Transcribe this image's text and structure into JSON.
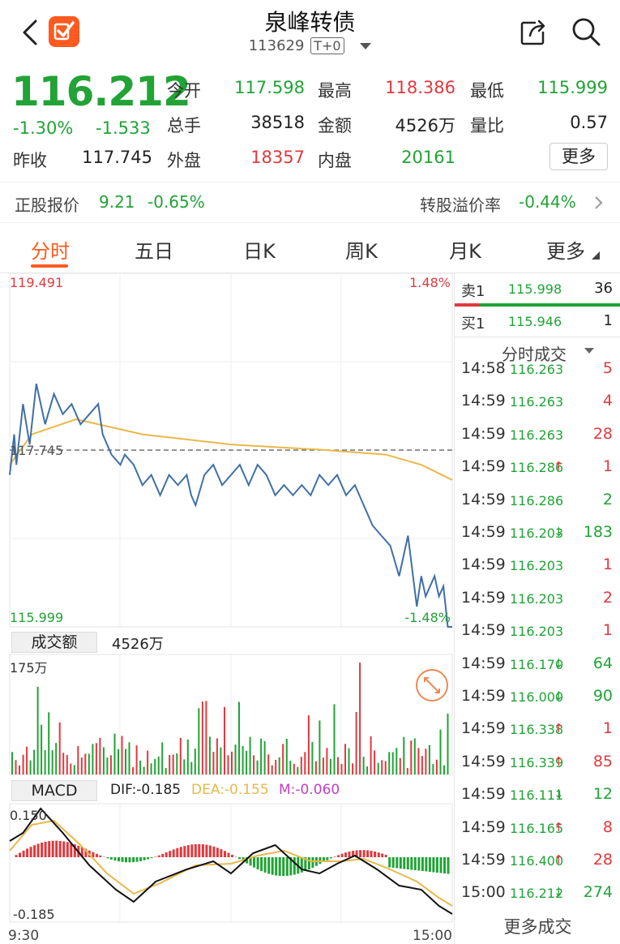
{
  "header": {
    "title": "泉峰转债",
    "code": "113629",
    "tag": "T+0"
  },
  "quote": {
    "price": "116.212",
    "change_pct": "-1.30%",
    "change": "-1.533",
    "prev_close_label": "昨收",
    "prev_close": "117.745",
    "open_label": "今开",
    "open": "117.598",
    "high_label": "最高",
    "high": "118.386",
    "low_label": "最低",
    "low": "115.999",
    "volume_label": "总手",
    "volume": "38518",
    "amount_label": "金额",
    "amount": "4526万",
    "vol_ratio_label": "量比",
    "vol_ratio": "0.57",
    "outer_label": "外盘",
    "outer": "18357",
    "inner_label": "内盘",
    "inner": "20161",
    "more_label": "更多"
  },
  "underlying": {
    "label": "正股报价",
    "price": "9.21",
    "pct": "-0.65%",
    "premium_label": "转股溢价率",
    "premium": "-0.44%"
  },
  "tabs": [
    {
      "label": "分时"
    },
    {
      "label": "五日"
    },
    {
      "label": "日K"
    },
    {
      "label": "周K"
    },
    {
      "label": "月K"
    },
    {
      "label": "更多"
    }
  ],
  "chart": {
    "top_price": "119.491",
    "top_pct": "1.48%",
    "prev_close": "117.745",
    "bottom_price": "115.999",
    "bottom_pct": "-1.48%",
    "volume_box_label": "成交额",
    "volume_amount": "4526万",
    "volume_max": "175万",
    "macd_label": "MACD",
    "dif": "DIF:-0.185",
    "dea": "DEA:-0.155",
    "m": "M:-0.060",
    "macd_top": "0.150",
    "macd_bottom": "-0.185",
    "time_start": "9:30",
    "time_end": "15:00",
    "colors": {
      "price_line": "#3f6fa8",
      "avg_line": "#e8b84a",
      "up": "#e0393e",
      "down": "#21a336"
    }
  },
  "orderbook": {
    "sell1_label": "卖1",
    "sell1_price": "115.998",
    "sell1_vol": "36",
    "buy1_label": "买1",
    "buy1_price": "115.946",
    "buy1_vol": "1",
    "trades_header": "分时成交",
    "more_trades": "更多成交"
  },
  "trades": [
    {
      "time": "14:58",
      "price": "116.263",
      "arrow": "",
      "vol": "5",
      "color": "red"
    },
    {
      "time": "14:59",
      "price": "116.263",
      "arrow": "",
      "vol": "4",
      "color": "red"
    },
    {
      "time": "14:59",
      "price": "116.263",
      "arrow": "",
      "vol": "28",
      "color": "red"
    },
    {
      "time": "14:59",
      "price": "116.286",
      "arrow": "↑",
      "vol": "1",
      "color": "red"
    },
    {
      "time": "14:59",
      "price": "116.286",
      "arrow": "",
      "vol": "2",
      "color": "green"
    },
    {
      "time": "14:59",
      "price": "116.203",
      "arrow": "↓",
      "vol": "183",
      "color": "green"
    },
    {
      "time": "14:59",
      "price": "116.203",
      "arrow": "",
      "vol": "1",
      "color": "red"
    },
    {
      "time": "14:59",
      "price": "116.203",
      "arrow": "",
      "vol": "2",
      "color": "red"
    },
    {
      "time": "14:59",
      "price": "116.203",
      "arrow": "",
      "vol": "1",
      "color": "red"
    },
    {
      "time": "14:59",
      "price": "116.170",
      "arrow": "↓",
      "vol": "64",
      "color": "green"
    },
    {
      "time": "14:59",
      "price": "116.000",
      "arrow": "↓",
      "vol": "90",
      "color": "green"
    },
    {
      "time": "14:59",
      "price": "116.338",
      "arrow": "↑",
      "vol": "1",
      "color": "red"
    },
    {
      "time": "14:59",
      "price": "116.339",
      "arrow": "↑",
      "vol": "85",
      "color": "red"
    },
    {
      "time": "14:59",
      "price": "116.111",
      "arrow": "↓",
      "vol": "12",
      "color": "green"
    },
    {
      "time": "14:59",
      "price": "116.165",
      "arrow": "↑",
      "vol": "8",
      "color": "red"
    },
    {
      "time": "14:59",
      "price": "116.400",
      "arrow": "↑",
      "vol": "28",
      "color": "red"
    },
    {
      "time": "15:00",
      "price": "116.212",
      "arrow": "↓",
      "vol": "274",
      "color": "green"
    }
  ]
}
